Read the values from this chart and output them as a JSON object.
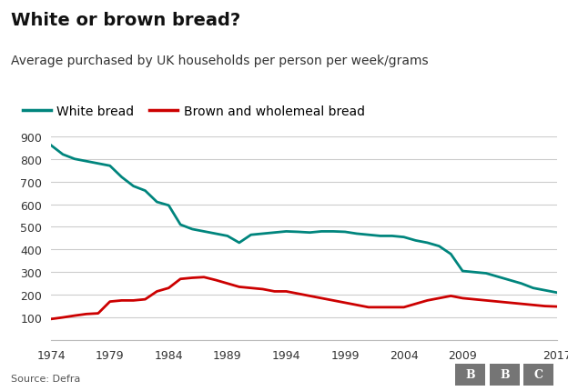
{
  "title": "White or brown bread?",
  "subtitle": "Average purchased by UK households per person per week/grams",
  "source": "Source: Defra",
  "legend": [
    "White bread",
    "Brown and wholemeal bread"
  ],
  "white_color": "#00857d",
  "brown_color": "#cc0000",
  "background_color": "#ffffff",
  "ylim": [
    0,
    900
  ],
  "yticks": [
    0,
    100,
    200,
    300,
    400,
    500,
    600,
    700,
    800,
    900
  ],
  "xticks": [
    1974,
    1979,
    1984,
    1989,
    1994,
    1999,
    2004,
    2009,
    2017
  ],
  "white_x": [
    1974,
    1975,
    1976,
    1977,
    1978,
    1979,
    1980,
    1981,
    1982,
    1983,
    1984,
    1985,
    1986,
    1987,
    1988,
    1989,
    1990,
    1991,
    1992,
    1993,
    1994,
    1995,
    1996,
    1997,
    1998,
    1999,
    2000,
    2001,
    2002,
    2003,
    2004,
    2005,
    2006,
    2007,
    2008,
    2009,
    2010,
    2011,
    2012,
    2013,
    2014,
    2015,
    2016,
    2017
  ],
  "white_y": [
    860,
    820,
    800,
    790,
    780,
    770,
    720,
    680,
    660,
    610,
    595,
    510,
    490,
    480,
    470,
    460,
    430,
    465,
    470,
    475,
    480,
    478,
    475,
    480,
    480,
    478,
    470,
    465,
    460,
    460,
    455,
    440,
    430,
    415,
    380,
    305,
    300,
    295,
    280,
    265,
    250,
    230,
    220,
    210
  ],
  "brown_x": [
    1974,
    1975,
    1976,
    1977,
    1978,
    1979,
    1980,
    1981,
    1982,
    1983,
    1984,
    1985,
    1986,
    1987,
    1988,
    1989,
    1990,
    1991,
    1992,
    1993,
    1994,
    1995,
    1996,
    1997,
    1998,
    1999,
    2000,
    2001,
    2002,
    2003,
    2004,
    2005,
    2006,
    2007,
    2008,
    2009,
    2010,
    2011,
    2012,
    2013,
    2014,
    2015,
    2016,
    2017
  ],
  "brown_y": [
    93,
    100,
    108,
    115,
    118,
    170,
    175,
    175,
    180,
    215,
    230,
    270,
    275,
    278,
    265,
    250,
    235,
    230,
    225,
    215,
    215,
    205,
    195,
    185,
    175,
    165,
    155,
    145,
    145,
    145,
    145,
    160,
    175,
    185,
    195,
    185,
    180,
    175,
    170,
    165,
    160,
    155,
    150,
    148
  ],
  "bbc_box_color": "#757575",
  "grid_color": "#cccccc",
  "spine_color": "#bbbbbb",
  "tick_label_color": "#333333",
  "source_color": "#555555",
  "title_fontsize": 14,
  "subtitle_fontsize": 10,
  "legend_fontsize": 10,
  "tick_fontsize": 9,
  "source_fontsize": 8
}
